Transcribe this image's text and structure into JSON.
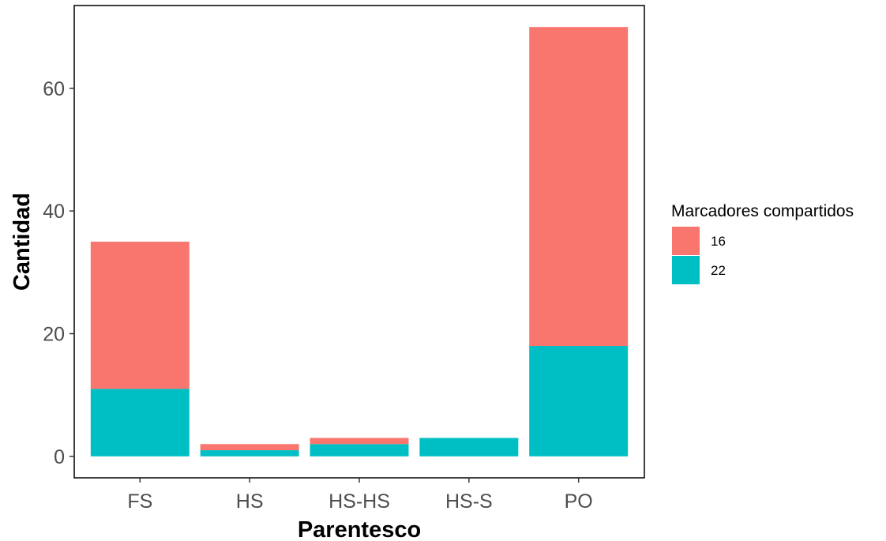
{
  "chart_data": {
    "type": "bar",
    "stacked": true,
    "categories": [
      "FS",
      "HS",
      "HS-HS",
      "HS-S",
      "PO"
    ],
    "series": [
      {
        "name": "16",
        "values": [
          24,
          1,
          1,
          0,
          52
        ],
        "color": "#F8766D"
      },
      {
        "name": "22",
        "values": [
          11,
          1,
          2,
          3,
          18
        ],
        "color": "#00BFC4"
      }
    ],
    "xlabel": "Parentesco",
    "ylabel": "Cantidad",
    "ylim": [
      -3.5,
      73.5
    ],
    "yticks": [
      0,
      20,
      40,
      60
    ],
    "grid": false,
    "legend": {
      "title": "Marcadores compartidos",
      "placement": "right"
    }
  }
}
